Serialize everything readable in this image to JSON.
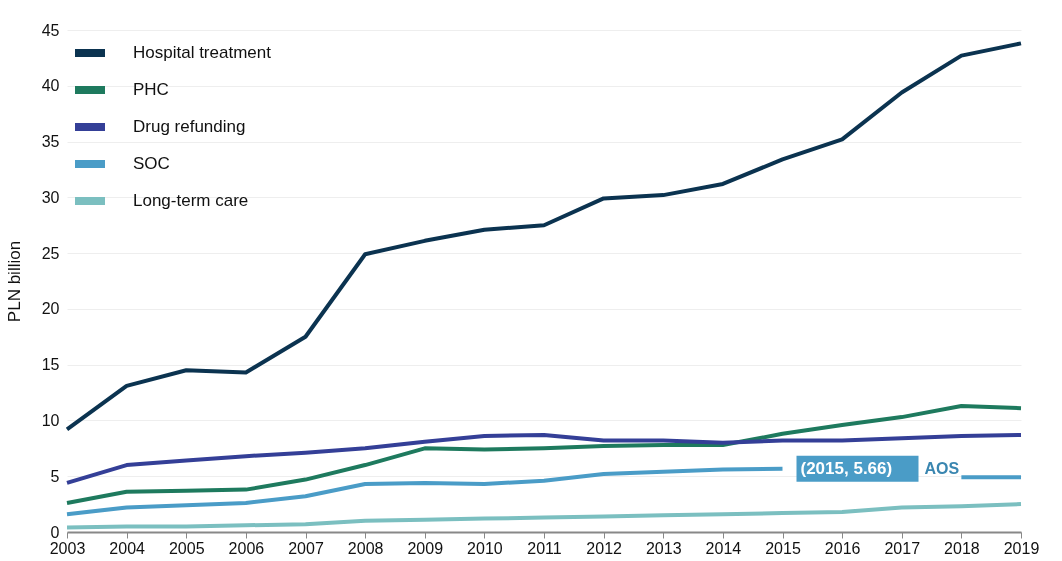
{
  "chart_data": {
    "type": "line",
    "ylabel": "PLN billion",
    "x": [
      2003,
      2004,
      2005,
      2006,
      2007,
      2008,
      2009,
      2010,
      2011,
      2012,
      2013,
      2014,
      2015,
      2016,
      2017,
      2018,
      2019
    ],
    "xlim": [
      2003,
      2019
    ],
    "xticks": [
      2003,
      2004,
      2005,
      2006,
      2007,
      2008,
      2009,
      2010,
      2011,
      2012,
      2013,
      2014,
      2015,
      2016,
      2017,
      2018,
      2019
    ],
    "ylim": [
      0,
      45
    ],
    "yticks": [
      0,
      5,
      10,
      15,
      20,
      25,
      30,
      35,
      40,
      45
    ],
    "grid": "y",
    "legend": "top left",
    "marker": "none",
    "series": [
      {
        "name": "Hospital treatment",
        "color": "#0b3350",
        "values": [
          9.2,
          13.1,
          14.5,
          14.3,
          17.5,
          24.9,
          26.1,
          27.1,
          27.5,
          29.9,
          30.2,
          31.2,
          33.4,
          35.2,
          39.4,
          42.7,
          43.8
        ]
      },
      {
        "name": "PHC",
        "color": "#1e7a5e",
        "values": [
          2.6,
          3.6,
          3.7,
          3.8,
          4.7,
          6.0,
          7.5,
          7.4,
          7.5,
          7.7,
          7.8,
          7.8,
          8.8,
          9.6,
          10.3,
          11.3,
          11.1
        ]
      },
      {
        "name": "Drug refunding",
        "color": "#343f97",
        "values": [
          4.4,
          6.0,
          6.4,
          6.8,
          7.1,
          7.5,
          8.1,
          8.6,
          8.7,
          8.2,
          8.2,
          8.0,
          8.2,
          8.2,
          8.4,
          8.6,
          8.7
        ]
      },
      {
        "name": "SOC",
        "color": "#4a9cc7",
        "values": [
          1.6,
          2.2,
          2.4,
          2.6,
          3.2,
          4.3,
          4.4,
          4.3,
          4.6,
          5.2,
          5.4,
          5.6,
          5.66,
          null,
          null,
          4.9,
          4.9
        ]
      },
      {
        "name": "Long-term care",
        "color": "#7bbfc0",
        "values": [
          0.4,
          0.5,
          0.5,
          0.6,
          0.7,
          1.0,
          1.1,
          1.2,
          1.3,
          1.4,
          1.5,
          1.6,
          1.7,
          1.8,
          2.2,
          2.3,
          2.5
        ]
      }
    ],
    "annotations": [
      {
        "text": "(2015, 5.66)",
        "x": 2015,
        "y": 5.66
      },
      "AOS"
    ]
  }
}
